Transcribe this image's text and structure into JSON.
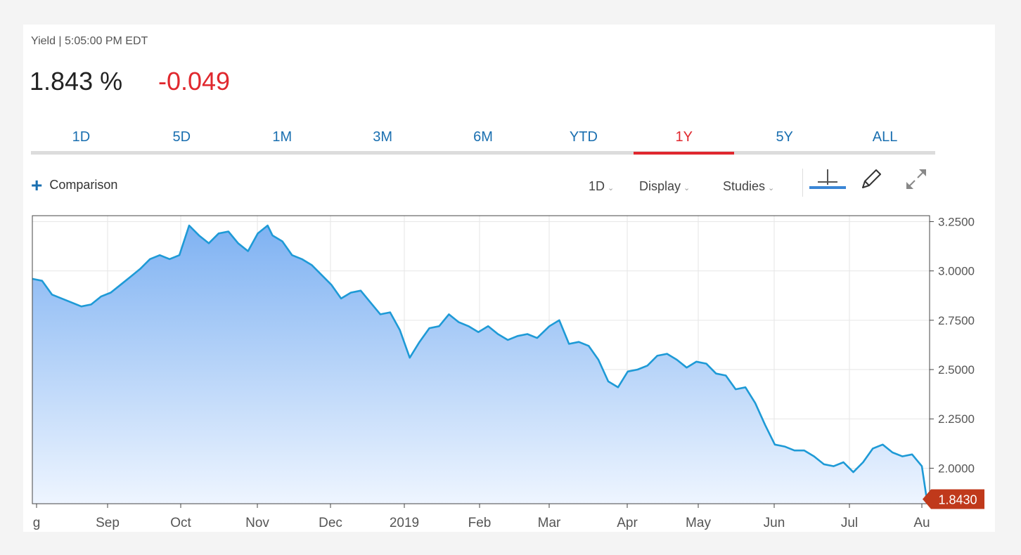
{
  "header": {
    "subtitle": "Yield | 5:05:00 PM EDT",
    "price": "1.843 %",
    "change": "-0.049"
  },
  "tabs": [
    "1D",
    "5D",
    "1M",
    "3M",
    "6M",
    "YTD",
    "1Y",
    "5Y",
    "ALL"
  ],
  "active_tab": "1Y",
  "toolbar": {
    "comparison_label": "Comparison",
    "interval_label": "1D",
    "display_label": "Display",
    "studies_label": "Studies",
    "icons": [
      "crosshair-icon",
      "pencil-icon",
      "expand-icon"
    ]
  },
  "colors": {
    "line": "#1e9ad6",
    "fill_top": "#7fb2f2",
    "fill_bottom": "#eef5ff",
    "negative": "#e0282e",
    "accent": "#1a6fb0",
    "last_price_badge": "#c0391b"
  },
  "chart_data": {
    "type": "area",
    "x_ticks": [
      "g",
      "Sep",
      "Oct",
      "Nov",
      "Dec",
      "2019",
      "Feb",
      "Mar",
      "Apr",
      "May",
      "Jun",
      "Jul",
      "Au"
    ],
    "y_ticks": [
      "3.2500",
      "3.0000",
      "2.7500",
      "2.5000",
      "2.2500",
      "2.0000"
    ],
    "ylim": [
      1.82,
      3.28
    ],
    "grid": true,
    "last_value_label": "1.8430",
    "series": [
      {
        "x": [
          "2018-08-02",
          "2018-08-06",
          "2018-08-10",
          "2018-08-14",
          "2018-08-18",
          "2018-08-22",
          "2018-08-26",
          "2018-08-30",
          "2018-09-03",
          "2018-09-07",
          "2018-09-11",
          "2018-09-15",
          "2018-09-19",
          "2018-09-23",
          "2018-09-27",
          "2018-10-01",
          "2018-10-05",
          "2018-10-09",
          "2018-10-13",
          "2018-10-17",
          "2018-10-21",
          "2018-10-25",
          "2018-10-29",
          "2018-11-02",
          "2018-11-06",
          "2018-11-08",
          "2018-11-12",
          "2018-11-16",
          "2018-11-20",
          "2018-11-24",
          "2018-11-28",
          "2018-12-02",
          "2018-12-06",
          "2018-12-10",
          "2018-12-14",
          "2018-12-18",
          "2018-12-22",
          "2018-12-26",
          "2018-12-30",
          "2019-01-03",
          "2019-01-07",
          "2019-01-11",
          "2019-01-15",
          "2019-01-19",
          "2019-01-23",
          "2019-01-27",
          "2019-01-31",
          "2019-02-04",
          "2019-02-08",
          "2019-02-12",
          "2019-02-16",
          "2019-02-20",
          "2019-02-24",
          "2019-03-01",
          "2019-03-05",
          "2019-03-09",
          "2019-03-13",
          "2019-03-17",
          "2019-03-21",
          "2019-03-25",
          "2019-03-29",
          "2019-04-02",
          "2019-04-06",
          "2019-04-10",
          "2019-04-14",
          "2019-04-18",
          "2019-04-22",
          "2019-04-26",
          "2019-04-30",
          "2019-05-04",
          "2019-05-08",
          "2019-05-12",
          "2019-05-16",
          "2019-05-20",
          "2019-05-24",
          "2019-05-28",
          "2019-06-01",
          "2019-06-05",
          "2019-06-09",
          "2019-06-13",
          "2019-06-17",
          "2019-06-21",
          "2019-06-25",
          "2019-06-29",
          "2019-07-03",
          "2019-07-07",
          "2019-07-11",
          "2019-07-15",
          "2019-07-19",
          "2019-07-23",
          "2019-07-27",
          "2019-07-31",
          "2019-08-02"
        ],
        "y": [
          2.96,
          2.95,
          2.88,
          2.86,
          2.84,
          2.82,
          2.83,
          2.87,
          2.89,
          2.93,
          2.97,
          3.01,
          3.06,
          3.08,
          3.06,
          3.08,
          3.23,
          3.18,
          3.14,
          3.19,
          3.2,
          3.14,
          3.1,
          3.19,
          3.23,
          3.18,
          3.15,
          3.08,
          3.06,
          3.03,
          2.98,
          2.93,
          2.86,
          2.89,
          2.9,
          2.84,
          2.78,
          2.79,
          2.7,
          2.56,
          2.64,
          2.71,
          2.72,
          2.78,
          2.74,
          2.72,
          2.69,
          2.72,
          2.68,
          2.65,
          2.67,
          2.68,
          2.66,
          2.72,
          2.75,
          2.63,
          2.64,
          2.62,
          2.55,
          2.44,
          2.41,
          2.49,
          2.5,
          2.52,
          2.57,
          2.58,
          2.55,
          2.51,
          2.54,
          2.53,
          2.48,
          2.47,
          2.4,
          2.41,
          2.33,
          2.22,
          2.12,
          2.11,
          2.09,
          2.09,
          2.06,
          2.02,
          2.01,
          2.03,
          1.98,
          2.03,
          2.1,
          2.12,
          2.08,
          2.06,
          2.07,
          2.01,
          1.843
        ]
      }
    ]
  }
}
